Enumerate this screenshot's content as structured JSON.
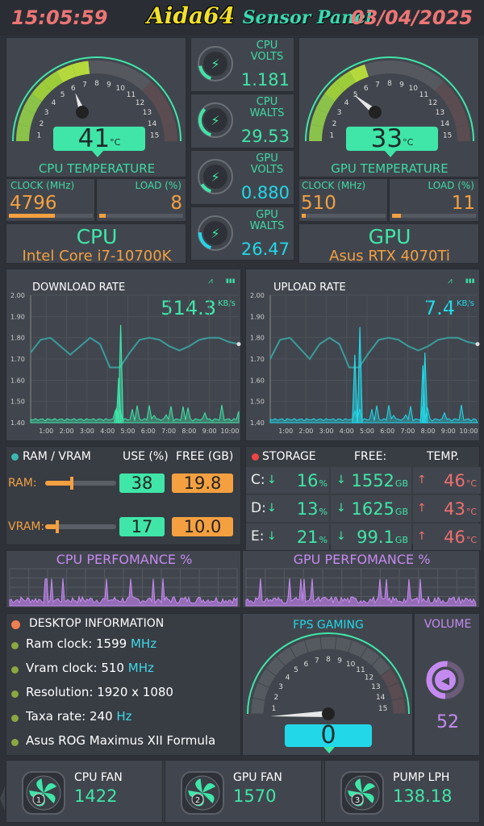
{
  "header": {
    "time": "15:05:59",
    "title_a": "Aida64",
    "title_b": "Sensor Panel",
    "date": "03/04/2025"
  },
  "cpu": {
    "temp_value": "41",
    "temp_unit": "°C",
    "temp_fraction": 0.41,
    "temp_caption": "CPU TEMPERATURE",
    "clock_label": "CLOCK (MHz)",
    "clock_value": "4796",
    "clock_fraction": 0.46,
    "load_label": "LOAD (%)",
    "load_value": "8",
    "load_fraction": 0.08,
    "name": "CPU",
    "model": "Intel Core i7-10700K"
  },
  "gpu": {
    "temp_value": "33",
    "temp_unit": "°C",
    "temp_fraction": 0.33,
    "temp_caption": "GPU TEMPERATURE",
    "clock_label": "CLOCK (MHz)",
    "clock_value": "510",
    "clock_fraction": 0.05,
    "load_label": "LOAD (%)",
    "load_value": "11",
    "load_fraction": 0.11,
    "name": "GPU",
    "model": "Asus RTX 4070Ti"
  },
  "gauge_ticks": [
    "1",
    "2",
    "3",
    "4",
    "5",
    "6",
    "7",
    "8",
    "9",
    "10",
    "11",
    "12",
    "13",
    "14",
    "15"
  ],
  "volts": [
    {
      "line1": "CPU",
      "line2": "VOLTS",
      "value": "1.181",
      "fraction": 0.3
    },
    {
      "line1": "CPU",
      "line2": "WALTS",
      "value": "29.53",
      "fraction": 0.55
    },
    {
      "line1": "GPU",
      "line2": "VOLTS",
      "value": "0.880",
      "fraction": 0.2
    },
    {
      "line1": "GPU",
      "line2": "WALTS",
      "value": "26.47",
      "fraction": 0.35
    }
  ],
  "download": {
    "title": "DOWNLOAD RATE",
    "value": "514.3",
    "unit": "KB/s",
    "icon_a": "⩘",
    "icon_b": "▮▮▮"
  },
  "upload": {
    "title": "UPLOAD RATE",
    "value": "7.4",
    "unit": "KB/s",
    "icon_a": "⩘",
    "icon_b": "▮▮▮"
  },
  "chart_data": [
    {
      "type": "line",
      "title": "DOWNLOAD RATE",
      "yticks": [
        "2.00",
        "1.90",
        "1.80",
        "1.70",
        "1.60",
        "1.50",
        "1.40"
      ],
      "xticks": [
        "1:00",
        "2:00",
        "3:00",
        "4:00",
        "5:00",
        "6:00",
        "7:00",
        "8:00",
        "9:00",
        "10:00"
      ],
      "ylim": [
        1.4,
        2.0
      ],
      "series": [
        {
          "name": "trend",
          "values": [
            1.73,
            1.79,
            1.8,
            1.76,
            1.72,
            1.76,
            1.8,
            1.77,
            1.66,
            1.66,
            1.73,
            1.79,
            1.8,
            1.79,
            1.76,
            1.74,
            1.76,
            1.79,
            1.8,
            1.8,
            1.78,
            1.77
          ]
        }
      ],
      "spikes": [
        {
          "x": 4.65,
          "y": 1.86
        },
        {
          "x": 4.55,
          "y": 1.61
        },
        {
          "x": 4.45,
          "y": 1.47
        }
      ]
    },
    {
      "type": "line",
      "title": "UPLOAD RATE",
      "yticks": [
        "2.00",
        "1.90",
        "1.80",
        "1.70",
        "1.60",
        "1.50",
        "1.40"
      ],
      "xticks": [
        "1:00",
        "2:00",
        "3:00",
        "4:00",
        "5:00",
        "6:00",
        "7:00",
        "8:00",
        "9:00",
        "10:00"
      ],
      "ylim": [
        1.4,
        2.0
      ],
      "series": [
        {
          "name": "trend",
          "values": [
            1.7,
            1.79,
            1.8,
            1.75,
            1.7,
            1.77,
            1.8,
            1.77,
            1.66,
            1.66,
            1.73,
            1.79,
            1.8,
            1.79,
            1.76,
            1.74,
            1.76,
            1.79,
            1.8,
            1.8,
            1.78,
            1.77
          ]
        }
      ],
      "spikes": [
        {
          "x": 4.65,
          "y": 1.85
        },
        {
          "x": 4.4,
          "y": 1.72
        },
        {
          "x": 7.85,
          "y": 1.73
        },
        {
          "x": 7.75,
          "y": 1.67
        }
      ]
    }
  ],
  "memory": {
    "title": "RAM / VRAM",
    "use_label": "USE (%)",
    "free_label": "FREE (GB)",
    "rows": [
      {
        "label": "RAM:",
        "use": "38",
        "free": "19.8",
        "fraction": 0.38
      },
      {
        "label": "VRAM:",
        "use": "17",
        "free": "10.0",
        "fraction": 0.17
      }
    ]
  },
  "storage": {
    "title": "STORAGE",
    "free_label": "FREE:",
    "temp_label": "TEMP.",
    "rows": [
      {
        "drive": "C:",
        "use": "16",
        "free": "1552",
        "free_unit": "GB",
        "temp": "46",
        "temp_unit": "°C"
      },
      {
        "drive": "D:",
        "use": "13",
        "free": "1625",
        "free_unit": "GB",
        "temp": "43",
        "temp_unit": "°C"
      },
      {
        "drive": "E:",
        "use": "21",
        "free": "99.1",
        "free_unit": "GB",
        "temp": "46",
        "temp_unit": "°C"
      }
    ]
  },
  "perf": {
    "cpu_title": "CPU PERFOMANCE %",
    "gpu_title": "GPU PERFOMANCE %"
  },
  "desktop": {
    "title": "DESKTOP INFORMATION",
    "items": [
      {
        "text": "Ram clock:  1599 ",
        "unit": "MHz"
      },
      {
        "text": "Vram clock:  510 ",
        "unit": "MHz"
      },
      {
        "text": "Resolution:  1920 x 1080",
        "unit": ""
      },
      {
        "text": "Taxa rate:  240 ",
        "unit": "Hz"
      },
      {
        "text": "Asus ROG Maximus XII Formula",
        "unit": ""
      }
    ]
  },
  "fps": {
    "title": "FPS GAMING",
    "value": "0",
    "fraction": 0.0
  },
  "volume": {
    "title": "VOLUME",
    "value": "52",
    "fraction": 0.52
  },
  "fans": [
    {
      "num": "1",
      "label": "CPU FAN",
      "value": "1422"
    },
    {
      "num": "2",
      "label": "GPU FAN",
      "value": "1570"
    },
    {
      "num": "3",
      "label": "PUMP LPH",
      "value": "138.18"
    }
  ],
  "colors": {
    "accent": "#3fe6a8",
    "orange": "#f4a040",
    "red": "#ee6f6f",
    "purple": "#c58af0",
    "cyan": "#22d8e8"
  }
}
